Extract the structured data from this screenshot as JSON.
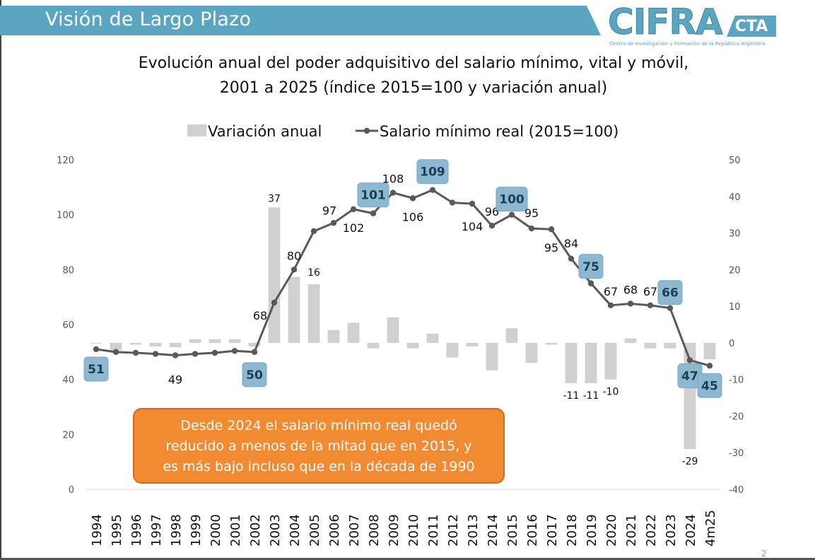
{
  "header": {
    "title": "Visión de Largo Plazo"
  },
  "logo": {
    "main": "CIFRA",
    "tag": "CTA",
    "subtitle": "Centro de Investigación y Formación de la República Argentina"
  },
  "colors": {
    "header_band": "#5aa6c1",
    "bar": "#d0d0d0",
    "line": "#595959",
    "highlight_box": "#8db8d2",
    "callout_bg": "#f28a32"
  },
  "callout": {
    "lines": [
      "Desde 2024 el salario mínimo real quedó",
      "reducido a menos de la mitad que en 2015, y",
      "es más bajo incluso que en la década de 1990"
    ]
  },
  "page_number": "2",
  "chart_data": {
    "type": "bar+line",
    "title_lines": [
      "Evolución anual del poder adquisitivo del salario mínimo, vital y móvil,",
      "2001 a 2025 (índice 2015=100 y variación anual)"
    ],
    "categories": [
      "1994",
      "1995",
      "1996",
      "1997",
      "1998",
      "1999",
      "2000",
      "2001",
      "2002",
      "2003",
      "2004",
      "2005",
      "2006",
      "2007",
      "2008",
      "2009",
      "2010",
      "2011",
      "2012",
      "2013",
      "2014",
      "2015",
      "2016",
      "2017",
      "2018",
      "2019",
      "2020",
      "2021",
      "2022",
      "2023",
      "2024",
      "4m25"
    ],
    "left_axis": {
      "ylim": [
        0,
        120
      ],
      "ticks": [
        0,
        20,
        40,
        60,
        80,
        100,
        120
      ]
    },
    "right_axis": {
      "ylim": [
        -40,
        50
      ],
      "ticks": [
        -40,
        -30,
        -20,
        -10,
        0,
        10,
        20,
        30,
        40,
        50
      ]
    },
    "legend": [
      "Variación anual",
      "Salario mínimo real (2015=100)"
    ],
    "legend_position": "top-center",
    "series": [
      {
        "name": "Variación anual",
        "type": "bar",
        "axis": "right",
        "values": [
          0,
          -2,
          -0.5,
          -1,
          -1.2,
          1,
          1,
          1,
          -1,
          37,
          18,
          16,
          3.5,
          5.5,
          -1.5,
          7,
          -1.5,
          2.5,
          -4,
          -1,
          -7.5,
          4,
          -5.5,
          -0.5,
          -11,
          -11,
          -10,
          1.2,
          -1.5,
          -1.5,
          -29,
          -4.5
        ],
        "labeled": [
          {
            "category": "2003",
            "label": "37"
          },
          {
            "category": "2005",
            "label": "16"
          },
          {
            "category": "2018",
            "label": "-11"
          },
          {
            "category": "2019",
            "label": "-11"
          },
          {
            "category": "2020",
            "label": "-10"
          },
          {
            "category": "2024",
            "label": "-29"
          }
        ]
      },
      {
        "name": "Salario mínimo real (2015=100)",
        "type": "line",
        "axis": "left",
        "values": [
          51,
          50,
          49.7,
          49.3,
          48.8,
          49.3,
          49.7,
          50.4,
          50,
          68,
          80,
          94,
          97,
          102,
          100.5,
          108,
          106,
          109,
          104.4,
          104,
          96,
          100,
          95,
          94.7,
          84,
          75,
          67,
          67.6,
          67,
          66,
          47,
          45
        ],
        "labeled": [
          {
            "category": "1994",
            "label": "51",
            "highlight": true
          },
          {
            "category": "1998",
            "label": "49"
          },
          {
            "category": "2002",
            "label": "50",
            "highlight": true
          },
          {
            "category": "2003",
            "label": "68"
          },
          {
            "category": "2004",
            "label": "80"
          },
          {
            "category": "2006",
            "label": "97"
          },
          {
            "category": "2007",
            "label": "102"
          },
          {
            "category": "2008",
            "label": "101",
            "highlight": true
          },
          {
            "category": "2009",
            "label": "108"
          },
          {
            "category": "2010",
            "label": "106"
          },
          {
            "category": "2011",
            "label": "109",
            "highlight": true
          },
          {
            "category": "2013",
            "label": "104"
          },
          {
            "category": "2014",
            "label": "96"
          },
          {
            "category": "2015",
            "label": "100",
            "highlight": true
          },
          {
            "category": "2016",
            "label": "95"
          },
          {
            "category": "2017",
            "label": "95"
          },
          {
            "category": "2018",
            "label": "84"
          },
          {
            "category": "2019",
            "label": "75",
            "highlight": true
          },
          {
            "category": "2020",
            "label": "67"
          },
          {
            "category": "2021",
            "label": "68"
          },
          {
            "category": "2022",
            "label": "67"
          },
          {
            "category": "2023",
            "label": "66",
            "highlight": true
          },
          {
            "category": "2024",
            "label": "47",
            "highlight": true
          },
          {
            "category": "4m25",
            "label": "45",
            "highlight": true
          }
        ]
      }
    ],
    "grid": false
  }
}
